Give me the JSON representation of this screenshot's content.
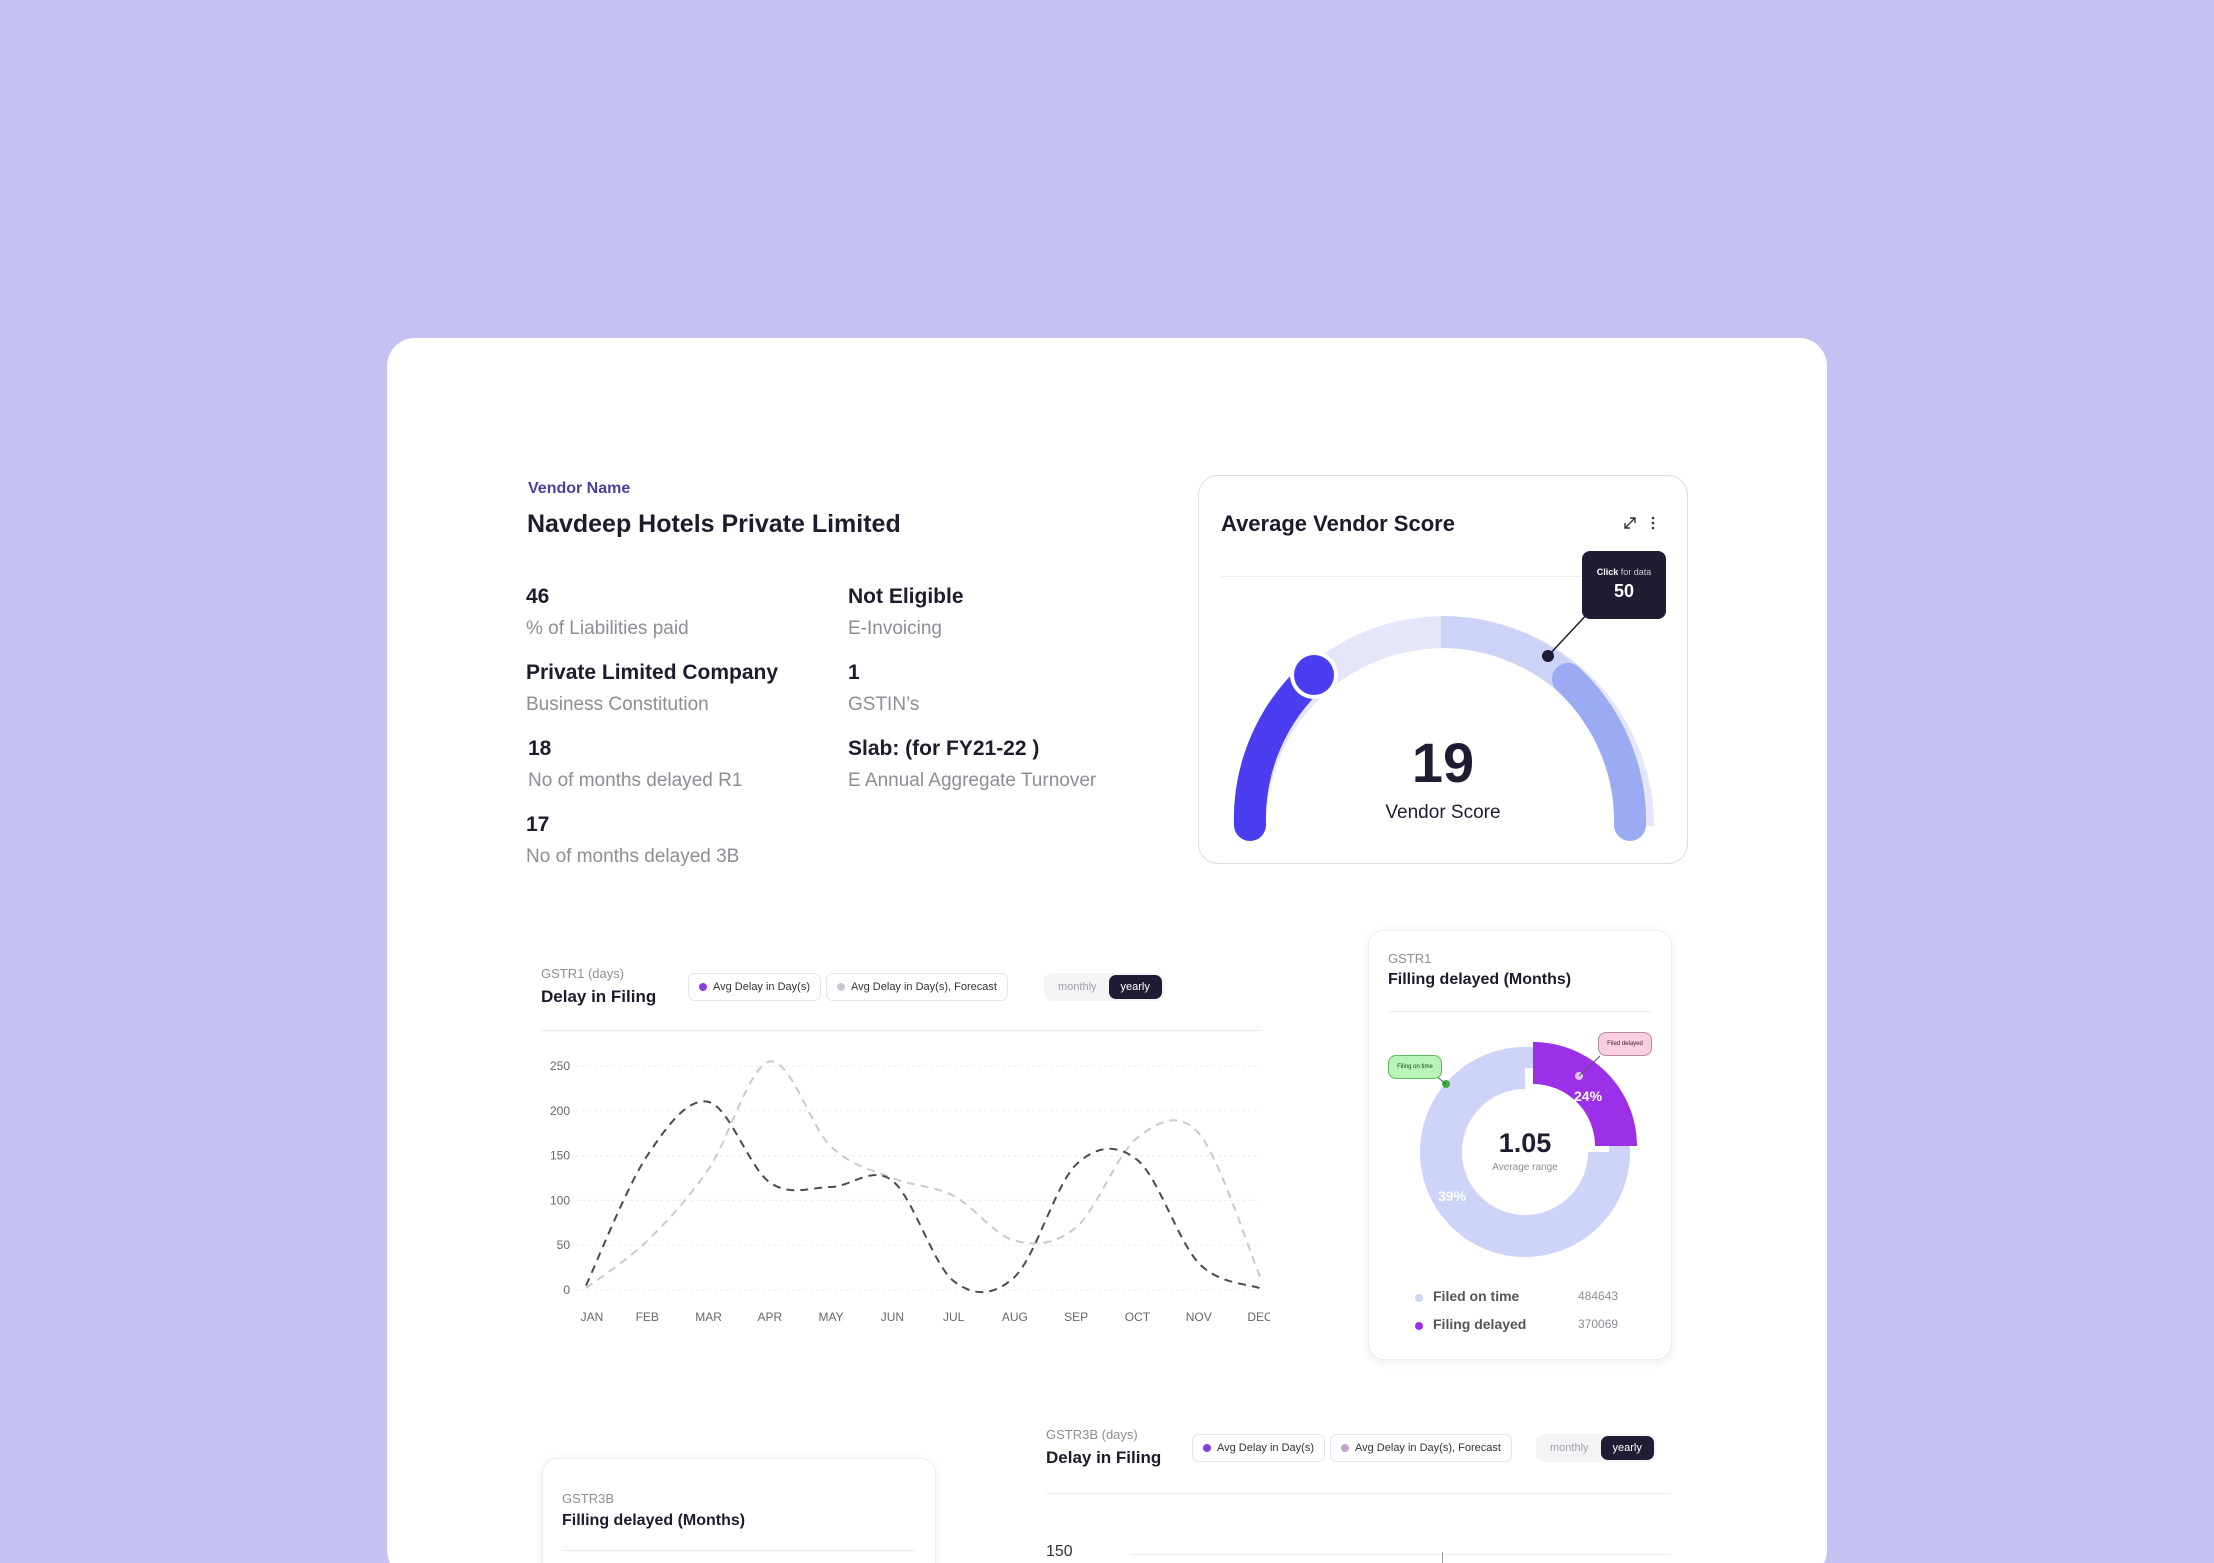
{
  "vendor": {
    "label": "Vendor Name",
    "name": "Navdeep Hotels Private Limited"
  },
  "facts": [
    {
      "value": "46",
      "label": "% of Liabilities paid"
    },
    {
      "value": "Not Eligible",
      "label": "E-Invoicing"
    },
    {
      "value": "Private Limited Company",
      "label": "Business Constitution"
    },
    {
      "value": "1",
      "label": "GSTIN’s"
    },
    {
      "value": "18",
      "label": "No of months delayed R1"
    },
    {
      "value": "Slab: (for FY21-22 )",
      "label": "E Annual Aggregate Turnover"
    },
    {
      "value": "17",
      "label": "No of months delayed 3B"
    }
  ],
  "score_card": {
    "title": "Average Vendor Score",
    "score": "19",
    "score_label": "Vendor Score",
    "tooltip_click": "Click",
    "tooltip_rest": "for data",
    "tooltip_value": "50",
    "colors": {
      "low": "#4a3ef0",
      "mid": "#e6e6fa",
      "high": "#9aaaf3",
      "marker": "#1e1d33"
    }
  },
  "gstr1_delay": {
    "subtitle": "GSTR1 (days)",
    "title": "Delay in Filing",
    "legend": [
      "Avg Delay in Day(s)",
      "Avg Delay in Day(s), Forecast"
    ],
    "toggle": [
      "monthly",
      "yearly"
    ],
    "active_toggle": "yearly"
  },
  "gstr1_donut": {
    "subtitle": "GSTR1",
    "title": "Filling delayed (Months)",
    "center_value": "1.05",
    "center_label": "Average range",
    "tag_on_time": "Filing on time",
    "tag_delayed": "Filed delayed",
    "pct_delayed": "24%",
    "pct_on_time": "39%",
    "legend": [
      {
        "label": "Filed on time",
        "value": "484643",
        "color": "#cdd4f8"
      },
      {
        "label": "Filing delayed",
        "value": "370069",
        "color": "#9b30e8"
      }
    ]
  },
  "gstr3b_donut": {
    "subtitle": "GSTR3B",
    "title": "Filling delayed (Months)"
  },
  "gstr3b_delay": {
    "subtitle": "GSTR3B (days)",
    "title": "Delay in Filing",
    "legend": [
      "Avg Delay in Day(s)",
      "Avg Delay in Day(s), Forecast"
    ],
    "toggle": [
      "monthly",
      "yearly"
    ],
    "active_toggle": "yearly",
    "first_tick": "150"
  },
  "chart_data": {
    "type": "line",
    "title": "Delay in Filing",
    "categories": [
      "JAN",
      "FEB",
      "MAR",
      "APR",
      "MAY",
      "JUN",
      "JUL",
      "AUG",
      "SEP",
      "OCT",
      "NOV",
      "DEC"
    ],
    "yticks": [
      "0",
      "50",
      "100",
      "150",
      "200",
      "250"
    ],
    "ylim": [
      0,
      250
    ],
    "series": [
      {
        "name": "Avg Delay in Day(s)",
        "values": [
          5,
          150,
          210,
          120,
          115,
          122,
          10,
          15,
          140,
          145,
          30,
          2
        ]
      },
      {
        "name": "Avg Delay in Day(s), Forecast",
        "values": [
          2,
          55,
          135,
          255,
          160,
          125,
          105,
          55,
          70,
          170,
          175,
          15
        ]
      }
    ],
    "grid": true
  }
}
